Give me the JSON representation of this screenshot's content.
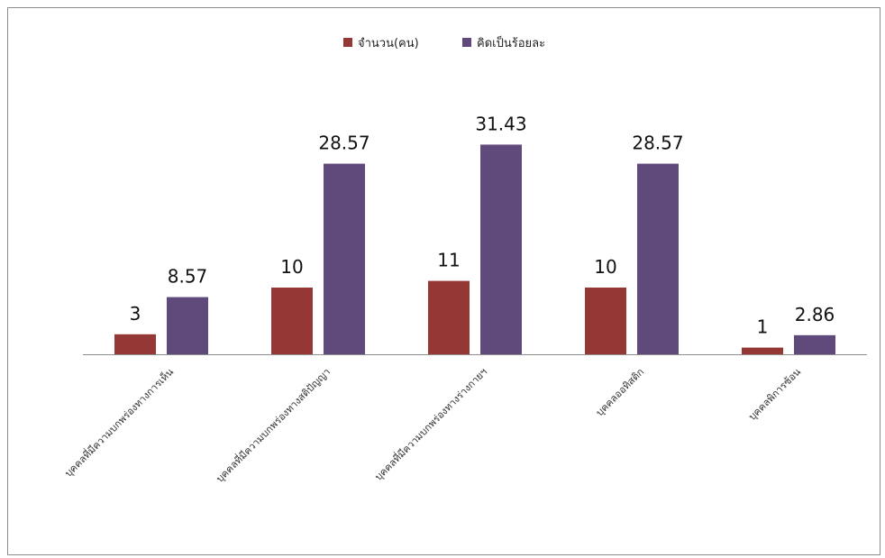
{
  "chart_data": {
    "type": "bar",
    "categories": [
      "บุคคลที่มีความบกพร่องทางการเห็น",
      "บุคคลที่มีความบกพร่องทางสติปัญญา",
      "บุคคลที่มีความบกพร่องทางร่างกายฯ",
      "บุคคลออทิสติก",
      "บุคคลพิการซ้อน"
    ],
    "series": [
      {
        "name": "จำนวน(คน)",
        "values": [
          3,
          10,
          11,
          10,
          1
        ],
        "labels": [
          "3",
          "10",
          "11",
          "10",
          "1"
        ],
        "color": "#953735"
      },
      {
        "name": "คิดเป็นร้อยละ",
        "values": [
          8.57,
          28.57,
          31.43,
          28.57,
          2.86
        ],
        "labels": [
          "8.57",
          "28.57",
          "31.43",
          "28.57",
          "2.86"
        ],
        "color": "#604a7b"
      }
    ],
    "ylim": [
      0,
      35
    ],
    "grid": false,
    "legend_position": "top-center"
  }
}
